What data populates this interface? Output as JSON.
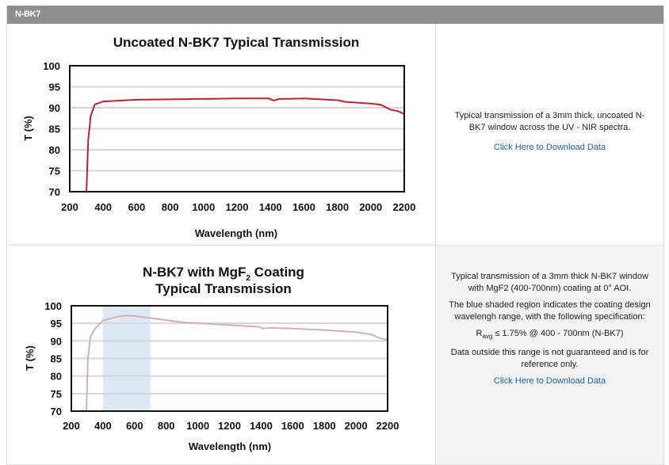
{
  "header": {
    "title": "N-BK7"
  },
  "rows": [
    {
      "description": [
        "Typical transmission of a 3mm thick, uncoated N-BK7 window across the UV - NIR spectra."
      ],
      "link": "Click Here to Download Data"
    },
    {
      "description": [
        "Typical transmission of a 3mm thick N-BK7 window with MgF2 (400-700nm) coating at 0° AOI.",
        "The blue shaded region indicates the coating design wavelengh range, with the following specification:"
      ],
      "spec": {
        "r": "R",
        "sub": "avg",
        "rest": " ≤ 1.75% @ 400 - 700nm (N-BK7)"
      },
      "note": "Data outside this range is not guaranteed and is for reference only.",
      "link": "Click Here to Download Data"
    }
  ],
  "chart_data": [
    {
      "type": "line",
      "title": "Uncoated N-BK7 Typical Transmission",
      "xlabel": "Wavelength (nm)",
      "ylabel": "T (%)",
      "xlim": [
        200,
        2200
      ],
      "ylim": [
        70,
        100
      ],
      "xticks": [
        "200",
        "400",
        "600",
        "800",
        "1000",
        "1200",
        "1400",
        "1600",
        "1800",
        "2000",
        "2200"
      ],
      "yticks": [
        "70",
        "75",
        "80",
        "85",
        "90",
        "95",
        "100"
      ],
      "grid": true,
      "line_color": "#c0202a",
      "series": [
        {
          "name": "Uncoated N-BK7",
          "x": [
            300,
            310,
            325,
            350,
            400,
            500,
            600,
            800,
            1000,
            1200,
            1300,
            1390,
            1420,
            1450,
            1600,
            1800,
            1850,
            2000,
            2060,
            2120,
            2160,
            2200
          ],
          "y": [
            70,
            82,
            88,
            90.8,
            91.5,
            91.7,
            91.9,
            92,
            92.1,
            92.2,
            92.2,
            92.2,
            91.7,
            92.1,
            92.2,
            91.8,
            91.4,
            91,
            90.7,
            89.5,
            89.2,
            88.5
          ]
        }
      ]
    },
    {
      "type": "line",
      "title": "N-BK7 with MgF",
      "title_sub": "2",
      "title_rest": " Coating",
      "title_line2": "Typical Transmission",
      "xlabel": "Wavelength (nm)",
      "ylabel": "T (%)",
      "xlim": [
        200,
        2200
      ],
      "ylim": [
        70,
        100
      ],
      "xticks": [
        "200",
        "400",
        "600",
        "800",
        "1000",
        "1200",
        "1400",
        "1600",
        "1800",
        "2000",
        "2200"
      ],
      "yticks": [
        "70",
        "75",
        "80",
        "85",
        "90",
        "95",
        "100"
      ],
      "grid": true,
      "line_color": "#d4aeb2",
      "shade_color": "#dce9f5",
      "shaded_range": [
        400,
        700
      ],
      "series": [
        {
          "name": "N-BK7 with MgF2",
          "x": [
            295,
            305,
            320,
            350,
            400,
            500,
            550,
            600,
            700,
            900,
            1200,
            1390,
            1410,
            1450,
            1600,
            1800,
            2000,
            2100,
            2150,
            2200
          ],
          "y": [
            70,
            85,
            91,
            93.5,
            95.8,
            97,
            97.2,
            97.1,
            96.5,
            95.3,
            94.5,
            94,
            93.5,
            93.7,
            93.5,
            93.1,
            92.5,
            91.8,
            90.8,
            90.3
          ]
        }
      ]
    }
  ]
}
